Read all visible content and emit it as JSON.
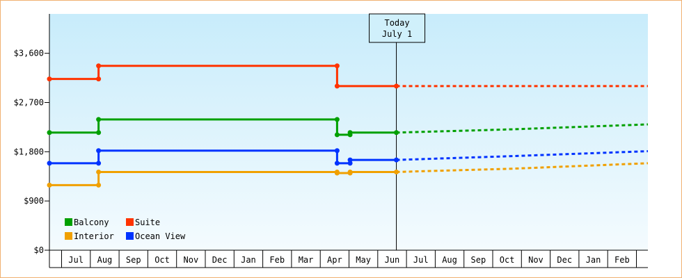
{
  "chart_data": {
    "type": "line",
    "title": "",
    "xlabel": "",
    "ylabel": "",
    "ylim": [
      0,
      4320
    ],
    "yticks": [
      0,
      900,
      1800,
      2700,
      3600
    ],
    "ytick_labels": [
      "$0",
      "$900",
      "$1,800",
      "$2,700",
      "$3,600"
    ],
    "months": [
      "Jul",
      "Aug",
      "Sep",
      "Oct",
      "Nov",
      "Dec",
      "Jan",
      "Feb",
      "Mar",
      "Apr",
      "May",
      "Jun",
      "Jul",
      "Aug",
      "Sep",
      "Oct",
      "Nov",
      "Dec",
      "Jan",
      "Feb"
    ],
    "x_domain": [
      0,
      20.7
    ],
    "today_x": 12,
    "today_label": [
      "Today",
      "July 1"
    ],
    "grid": false,
    "legend_position": "bottom-left",
    "series": [
      {
        "name": "Suite",
        "color": "#ff3300",
        "points": [
          [
            0,
            3130
          ],
          [
            1.7,
            3130
          ],
          [
            1.7,
            3370
          ],
          [
            9.95,
            3370
          ],
          [
            9.95,
            3000
          ],
          [
            12,
            3000
          ]
        ],
        "markers": [
          0,
          1,
          2,
          3,
          4,
          5
        ],
        "forecast": [
          [
            12,
            3000
          ],
          [
            20.7,
            3000
          ]
        ]
      },
      {
        "name": "Balcony",
        "color": "#00a000",
        "points": [
          [
            0,
            2150
          ],
          [
            1.7,
            2150
          ],
          [
            1.7,
            2390
          ],
          [
            9.95,
            2390
          ],
          [
            9.95,
            2110
          ],
          [
            10.4,
            2110
          ],
          [
            10.4,
            2150
          ],
          [
            12,
            2150
          ]
        ],
        "markers": [
          0,
          1,
          2,
          3,
          4,
          5,
          6,
          7
        ],
        "forecast": [
          [
            12,
            2150
          ],
          [
            16,
            2210
          ],
          [
            20.7,
            2300
          ]
        ]
      },
      {
        "name": "Ocean View",
        "color": "#0033ff",
        "points": [
          [
            0,
            1590
          ],
          [
            1.7,
            1590
          ],
          [
            1.7,
            1820
          ],
          [
            9.95,
            1820
          ],
          [
            9.95,
            1590
          ],
          [
            10.4,
            1590
          ],
          [
            10.4,
            1650
          ],
          [
            12,
            1650
          ]
        ],
        "markers": [
          0,
          1,
          2,
          3,
          4,
          5,
          6,
          7
        ],
        "forecast": [
          [
            12,
            1650
          ],
          [
            16,
            1720
          ],
          [
            20.7,
            1810
          ]
        ]
      },
      {
        "name": "Interior",
        "color": "#f0a000",
        "points": [
          [
            0,
            1190
          ],
          [
            1.7,
            1190
          ],
          [
            1.7,
            1430
          ],
          [
            9.95,
            1430
          ],
          [
            9.95,
            1410
          ],
          [
            10.4,
            1410
          ],
          [
            10.4,
            1430
          ],
          [
            12,
            1430
          ]
        ],
        "markers": [
          0,
          1,
          2,
          3,
          4,
          5,
          6,
          7
        ],
        "forecast": [
          [
            12,
            1430
          ],
          [
            16,
            1490
          ],
          [
            20.7,
            1590
          ]
        ]
      }
    ],
    "legend": [
      {
        "name": "Balcony",
        "color": "#00a000"
      },
      {
        "name": "Suite",
        "color": "#ff3300"
      },
      {
        "name": "Interior",
        "color": "#f0a000"
      },
      {
        "name": "Ocean View",
        "color": "#0033ff"
      }
    ]
  }
}
